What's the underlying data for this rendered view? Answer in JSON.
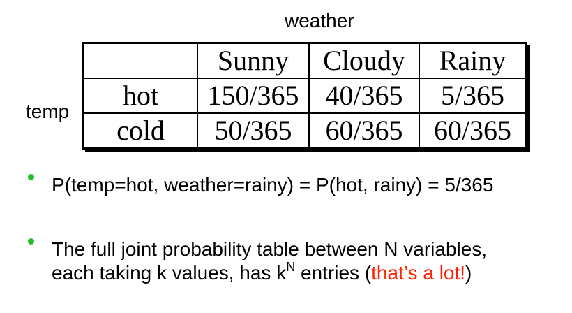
{
  "column_variable": "weather",
  "row_variable": "temp",
  "table": {
    "columns": [
      "Sunny",
      "Cloudy",
      "Rainy"
    ],
    "rows": [
      {
        "label": "hot",
        "values": [
          "150/365",
          "40/365",
          "5/365"
        ]
      },
      {
        "label": "cold",
        "values": [
          "50/365",
          "60/365",
          "60/365"
        ]
      }
    ]
  },
  "bullets": {
    "first": "P(temp=hot, weather=rainy) = P(hot, rainy) = 5/365",
    "second_line1": "The full joint probability table between N variables,",
    "second_line2_a": "each taking k values, has k",
    "second_line2_sup": "N",
    "second_line2_b": " entries (",
    "second_line2_highlight": "that’s a lot!",
    "second_line2_c": ")"
  },
  "colors": {
    "bullet": "#22c022",
    "highlight": "#ff2200"
  }
}
